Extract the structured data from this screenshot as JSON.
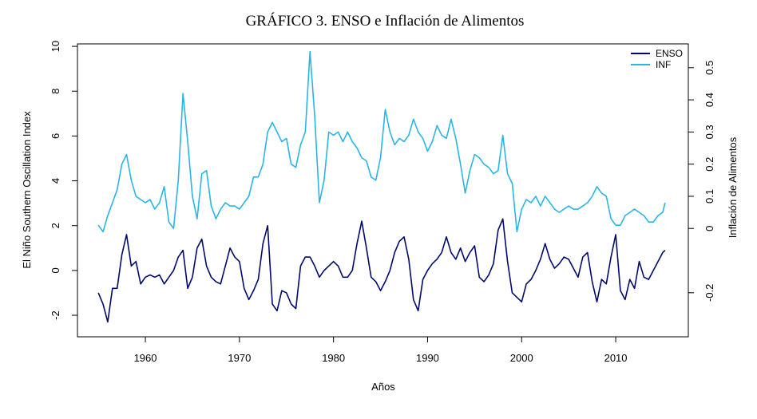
{
  "chart_data": {
    "type": "line",
    "title": "GRÁFICO 3.  ENSO e Inflación de Alimentos",
    "xlabel": "Años",
    "ylabel": "El Niño Southern Oscillation Index",
    "y2label": "Inflación de Alimentos",
    "legend": "top-right",
    "x": [
      1955,
      1955.5,
      1956,
      1956.5,
      1957,
      1957.5,
      1958,
      1958.5,
      1959,
      1959.5,
      1960,
      1960.5,
      1961,
      1961.5,
      1962,
      1962.5,
      1963,
      1963.5,
      1964,
      1964.5,
      1965,
      1965.5,
      1966,
      1966.5,
      1967,
      1967.5,
      1968,
      1968.5,
      1969,
      1969.5,
      1970,
      1970.5,
      1971,
      1971.5,
      1972,
      1972.5,
      1973,
      1973.5,
      1974,
      1974.5,
      1975,
      1975.5,
      1976,
      1976.5,
      1977,
      1977.5,
      1978,
      1978.5,
      1979,
      1979.5,
      1980,
      1980.5,
      1981,
      1981.5,
      1982,
      1982.5,
      1983,
      1983.5,
      1984,
      1984.5,
      1985,
      1985.5,
      1986,
      1986.5,
      1987,
      1987.5,
      1988,
      1988.5,
      1989,
      1989.5,
      1990,
      1990.5,
      1991,
      1991.5,
      1992,
      1992.5,
      1993,
      1993.5,
      1994,
      1994.5,
      1995,
      1995.5,
      1996,
      1996.5,
      1997,
      1997.5,
      1998,
      1998.5,
      1999,
      1999.5,
      2000,
      2000.5,
      2001,
      2001.5,
      2002,
      2002.5,
      2003,
      2003.5,
      2004,
      2004.5,
      2005,
      2005.5,
      2006,
      2006.5,
      2007,
      2007.5,
      2008,
      2008.5,
      2009,
      2009.5,
      2010,
      2010.5,
      2011,
      2011.5,
      2012,
      2012.5,
      2013,
      2013.5,
      2014,
      2014.5,
      2015,
      2015.25
    ],
    "series": [
      {
        "name": "ENSO",
        "color": "#000a6e",
        "values": [
          -1.0,
          -1.5,
          -2.3,
          -0.8,
          -0.8,
          0.7,
          1.6,
          0.2,
          0.4,
          -0.6,
          -0.3,
          -0.2,
          -0.3,
          -0.2,
          -0.6,
          -0.3,
          0.0,
          0.6,
          0.9,
          -0.8,
          -0.3,
          1.0,
          1.4,
          0.2,
          -0.3,
          -0.5,
          -0.6,
          0.2,
          1.0,
          0.6,
          0.4,
          -0.8,
          -1.3,
          -0.9,
          -0.4,
          1.2,
          2.0,
          -1.5,
          -1.8,
          -0.9,
          -1.0,
          -1.5,
          -1.7,
          0.2,
          0.6,
          0.6,
          0.2,
          -0.3,
          0.0,
          0.2,
          0.4,
          0.2,
          -0.3,
          -0.3,
          0.0,
          1.2,
          2.2,
          1.0,
          -0.3,
          -0.5,
          -0.9,
          -0.5,
          0.0,
          0.8,
          1.3,
          1.5,
          0.5,
          -1.3,
          -1.8,
          -0.4,
          0.0,
          0.3,
          0.5,
          0.8,
          1.5,
          0.8,
          0.5,
          1.0,
          0.4,
          0.8,
          1.1,
          -0.3,
          -0.5,
          -0.2,
          0.3,
          1.8,
          2.3,
          0.4,
          -1.0,
          -1.2,
          -1.4,
          -0.6,
          -0.4,
          0.0,
          0.5,
          1.2,
          0.5,
          0.1,
          0.3,
          0.6,
          0.5,
          0.1,
          -0.3,
          0.6,
          0.8,
          -0.5,
          -1.4,
          -0.4,
          -0.6,
          0.6,
          1.6,
          -0.9,
          -1.3,
          -0.4,
          -0.8,
          0.4,
          -0.3,
          -0.4,
          0.0,
          0.4,
          0.8,
          0.9
        ]
      },
      {
        "name": "INF",
        "color": "#29b6e6",
        "axis": "y2",
        "values": [
          0.01,
          -0.01,
          0.04,
          0.08,
          0.12,
          0.2,
          0.23,
          0.15,
          0.1,
          0.09,
          0.08,
          0.09,
          0.06,
          0.08,
          0.13,
          0.02,
          0.0,
          0.15,
          0.42,
          0.27,
          0.1,
          0.03,
          0.17,
          0.18,
          0.07,
          0.03,
          0.06,
          0.08,
          0.07,
          0.07,
          0.06,
          0.08,
          0.1,
          0.16,
          0.16,
          0.2,
          0.3,
          0.33,
          0.3,
          0.27,
          0.28,
          0.2,
          0.19,
          0.26,
          0.3,
          0.55,
          0.35,
          0.08,
          0.15,
          0.3,
          0.29,
          0.3,
          0.27,
          0.3,
          0.27,
          0.25,
          0.22,
          0.21,
          0.16,
          0.15,
          0.22,
          0.37,
          0.3,
          0.26,
          0.28,
          0.27,
          0.29,
          0.34,
          0.3,
          0.28,
          0.24,
          0.27,
          0.32,
          0.29,
          0.28,
          0.34,
          0.28,
          0.2,
          0.11,
          0.18,
          0.23,
          0.22,
          0.2,
          0.19,
          0.17,
          0.18,
          0.29,
          0.17,
          0.14,
          -0.01,
          0.06,
          0.09,
          0.08,
          0.1,
          0.07,
          0.1,
          0.08,
          0.06,
          0.05,
          0.06,
          0.07,
          0.06,
          0.06,
          0.07,
          0.08,
          0.1,
          0.13,
          0.11,
          0.1,
          0.03,
          0.01,
          0.01,
          0.04,
          0.05,
          0.06,
          0.05,
          0.04,
          0.02,
          0.02,
          0.04,
          0.05,
          0.08
        ]
      }
    ],
    "xlim": [
      1952.78,
      2017.72
    ],
    "xticks": [
      1960,
      1970,
      1980,
      1990,
      2000,
      2010
    ],
    "ylim": [
      -2.96,
      10.11
    ],
    "yticks": [
      -2,
      0,
      2,
      4,
      6,
      8,
      10
    ],
    "y2lim": [
      -0.337,
      0.574
    ],
    "y2ticks": [
      -0.2,
      0.0,
      0.1,
      0.2,
      0.3,
      0.4,
      0.5
    ]
  }
}
